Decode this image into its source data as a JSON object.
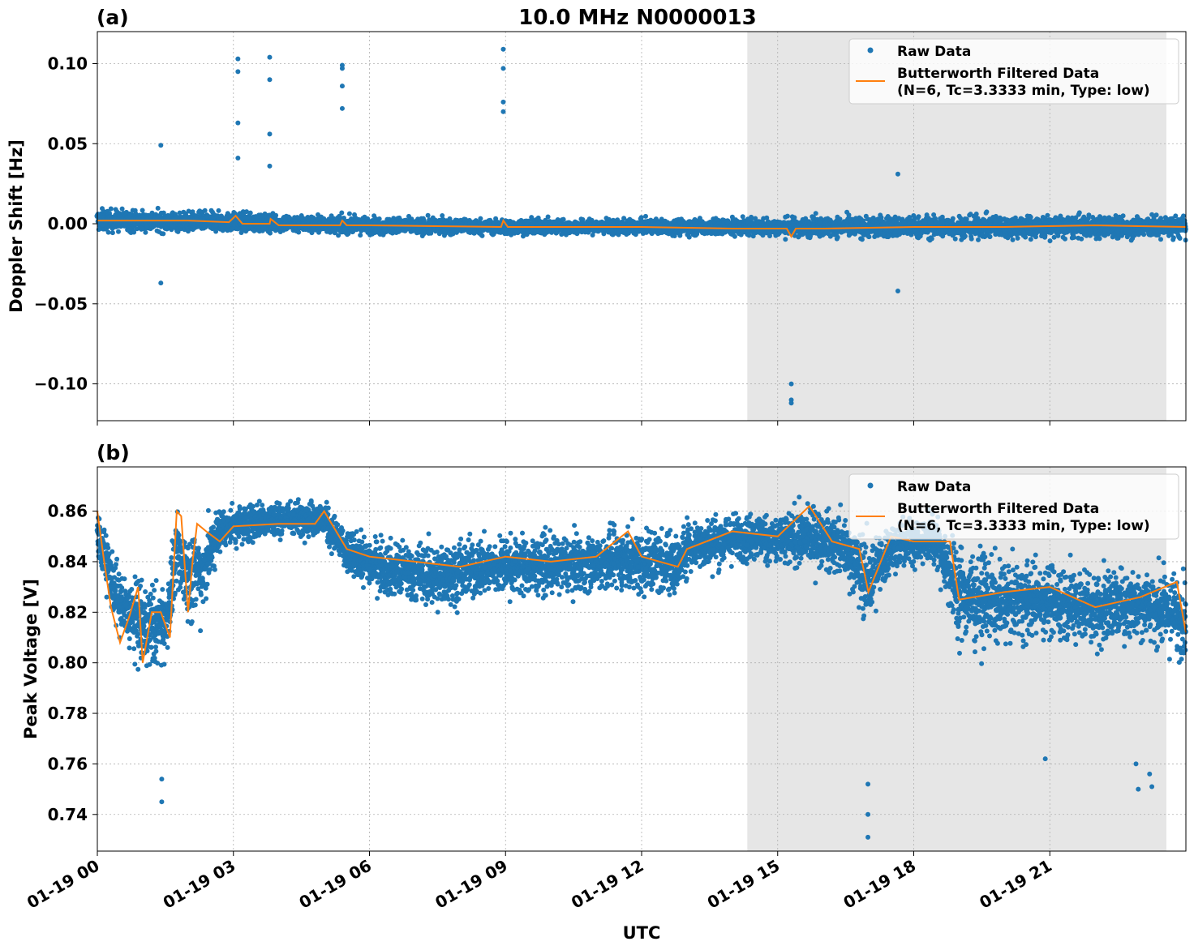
{
  "figure_title": "10.0 MHz N0000013",
  "x_axis": {
    "label": "UTC",
    "ticks": [
      "01-19 00",
      "01-19 03",
      "01-19 06",
      "01-19 09",
      "01-19 12",
      "01-19 15",
      "01-19 18",
      "01-19 21"
    ]
  },
  "legend": {
    "raw": "Raw Data",
    "filtered_line1": "Butterworth Filtered Data",
    "filtered_line2": "(N=6, Tc=3.3333 min, Type: low)"
  },
  "colors": {
    "raw": "#1f77b4",
    "filtered": "#ff7f0e",
    "night_shade": "#e6e6e6",
    "grid": "#b0b0b0"
  },
  "chart_data": [
    {
      "type": "scatter",
      "panel_label": "(a)",
      "title": "10.0 MHz N0000013",
      "xlabel": "",
      "ylabel": "Doppler Shift [Hz]",
      "xlim_hours": [
        0,
        24
      ],
      "ylim": [
        -0.123,
        0.12
      ],
      "yticks": [
        0.1,
        0.05,
        0.0,
        -0.05,
        -0.1
      ],
      "ytick_labels": [
        "0.10",
        "0.05",
        "0.00",
        "−0.05",
        "−0.10"
      ],
      "grid": true,
      "legend_position": "upper-right",
      "shaded_interval_hours": [
        14.33,
        23.57
      ],
      "series": [
        {
          "name": "Raw Data",
          "style": "markers",
          "baseline_hours": [
            0,
            3,
            6,
            9,
            12,
            15,
            18,
            21,
            24
          ],
          "baseline_values": [
            0.002,
            0.001,
            -0.001,
            -0.002,
            -0.002,
            -0.002,
            -0.002,
            -0.002,
            -0.002
          ],
          "typical_spread": [
            0.012,
            0.01,
            0.009,
            0.008,
            0.008,
            0.01,
            0.012,
            0.012,
            0.012
          ],
          "outlier_hours": [
            1.4,
            1.4,
            3.1,
            3.1,
            3.1,
            3.1,
            3.8,
            3.8,
            3.8,
            3.8,
            5.4,
            5.4,
            5.4,
            5.4,
            8.95,
            8.95,
            8.95,
            8.95,
            15.3,
            15.3,
            15.3,
            17.65,
            17.65
          ],
          "outlier_values": [
            0.049,
            -0.037,
            0.103,
            0.095,
            0.063,
            0.041,
            0.104,
            0.09,
            0.056,
            0.036,
            0.099,
            0.097,
            0.086,
            0.072,
            0.109,
            0.097,
            0.076,
            0.07,
            -0.1,
            -0.11,
            -0.112,
            0.031,
            -0.042
          ]
        },
        {
          "name": "Butterworth Filtered Data (N=6, Tc=3.3333 min, Type: low)",
          "style": "line",
          "x_hours": [
            0,
            1,
            2,
            2.9,
            3.05,
            3.2,
            3.8,
            3.82,
            4,
            5.35,
            5.4,
            5.5,
            6,
            8.9,
            8.95,
            9.05,
            10,
            12,
            14,
            15.2,
            15.3,
            15.4,
            16,
            18,
            20,
            22,
            24
          ],
          "values": [
            0.002,
            0.002,
            0.002,
            0.001,
            0.005,
            0.0,
            0.0,
            0.003,
            -0.001,
            -0.001,
            0.002,
            -0.001,
            -0.001,
            -0.002,
            0.002,
            -0.002,
            -0.002,
            -0.002,
            -0.003,
            -0.003,
            -0.008,
            -0.003,
            -0.003,
            -0.002,
            -0.002,
            -0.001,
            -0.002
          ]
        }
      ]
    },
    {
      "type": "scatter",
      "panel_label": "(b)",
      "title": "",
      "xlabel": "UTC",
      "ylabel": "Peak Voltage [V]",
      "xlim_hours": [
        0,
        24
      ],
      "ylim": [
        0.7255,
        0.8775
      ],
      "yticks": [
        0.86,
        0.84,
        0.82,
        0.8,
        0.78,
        0.76,
        0.74
      ],
      "ytick_labels": [
        "0.86",
        "0.84",
        "0.82",
        "0.80",
        "0.78",
        "0.76",
        "0.74"
      ],
      "grid": true,
      "legend_position": "upper-right",
      "shaded_interval_hours": [
        14.33,
        23.57
      ],
      "series": [
        {
          "name": "Raw Data",
          "style": "markers",
          "band_hours": [
            0,
            0.5,
            1.0,
            1.5,
            1.75,
            2.0,
            2.3,
            2.7,
            3.5,
            4.5,
            5.0,
            5.5,
            6.5,
            7.5,
            8.5,
            9.5,
            10.5,
            11.5,
            12.0,
            12.8,
            13.0,
            14.0,
            14.5,
            15.0,
            15.7,
            16.5,
            17.0,
            17.5,
            18.5,
            19.0,
            20.0,
            21.0,
            22.0,
            23.0,
            24.0
          ],
          "band_low": [
            0.836,
            0.8,
            0.784,
            0.79,
            0.818,
            0.804,
            0.806,
            0.838,
            0.843,
            0.846,
            0.844,
            0.828,
            0.818,
            0.812,
            0.818,
            0.818,
            0.82,
            0.822,
            0.815,
            0.818,
            0.828,
            0.832,
            0.834,
            0.83,
            0.83,
            0.826,
            0.8,
            0.83,
            0.832,
            0.792,
            0.798,
            0.8,
            0.795,
            0.8,
            0.79
          ],
          "band_high": [
            0.866,
            0.846,
            0.844,
            0.842,
            0.866,
            0.866,
            0.865,
            0.868,
            0.869,
            0.869,
            0.869,
            0.858,
            0.856,
            0.856,
            0.858,
            0.858,
            0.858,
            0.86,
            0.866,
            0.86,
            0.864,
            0.866,
            0.866,
            0.866,
            0.87,
            0.866,
            0.862,
            0.862,
            0.866,
            0.862,
            0.85,
            0.85,
            0.848,
            0.848,
            0.846
          ],
          "outlier_hours": [
            1.42,
            1.42,
            16.99,
            16.99,
            16.99,
            20.9,
            22.9,
            22.95,
            23.2,
            23.25
          ],
          "outlier_values": [
            0.754,
            0.745,
            0.752,
            0.74,
            0.731,
            0.762,
            0.76,
            0.75,
            0.756,
            0.751
          ]
        },
        {
          "name": "Butterworth Filtered Data (N=6, Tc=3.3333 min, Type: low)",
          "style": "line",
          "x_hours": [
            0,
            0.15,
            0.3,
            0.5,
            0.7,
            0.9,
            1.0,
            1.2,
            1.4,
            1.6,
            1.75,
            1.85,
            2.0,
            2.1,
            2.2,
            2.4,
            2.7,
            3.0,
            4.0,
            4.8,
            5.0,
            5.5,
            6.0,
            7.0,
            8.0,
            9.0,
            10.0,
            11.0,
            11.7,
            12.0,
            12.8,
            13.0,
            14.0,
            15.0,
            15.7,
            16.2,
            16.8,
            17.0,
            17.5,
            18.0,
            18.8,
            19.0,
            20.0,
            21.0,
            22.0,
            23.0,
            23.8,
            24.0
          ],
          "values": [
            0.86,
            0.84,
            0.822,
            0.808,
            0.818,
            0.83,
            0.8,
            0.82,
            0.82,
            0.81,
            0.86,
            0.858,
            0.82,
            0.84,
            0.855,
            0.852,
            0.848,
            0.854,
            0.855,
            0.855,
            0.86,
            0.845,
            0.842,
            0.84,
            0.838,
            0.842,
            0.84,
            0.842,
            0.852,
            0.842,
            0.838,
            0.845,
            0.852,
            0.85,
            0.862,
            0.848,
            0.845,
            0.828,
            0.85,
            0.848,
            0.848,
            0.825,
            0.828,
            0.83,
            0.822,
            0.826,
            0.832,
            0.812
          ]
        }
      ]
    }
  ]
}
